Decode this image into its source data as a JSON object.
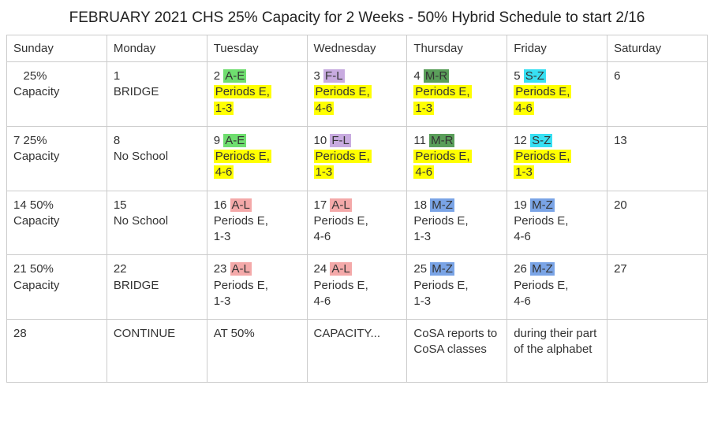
{
  "title": "FEBRUARY 2021 CHS 25% Capacity for 2 Weeks - 50% Hybrid Schedule to start 2/16",
  "colors": {
    "yellow": "#ffff00",
    "green": "#6fde6f",
    "darkgreen": "#5a9e5a",
    "lavender": "#c8abe0",
    "cyan": "#38e0f3",
    "pink": "#f4a9a9",
    "slate": "#7aa4e6",
    "border": "#cccccc",
    "text": "#333333"
  },
  "headers": [
    "Sunday",
    "Monday",
    "Tuesday",
    "Wednesday",
    "Thursday",
    "Friday",
    "Saturday"
  ],
  "weeks": [
    {
      "sun": {
        "pre": "   25% Capacity"
      },
      "mon": {
        "num": "1",
        "text": "BRIDGE"
      },
      "tue": {
        "num": "2",
        "group": "A-E",
        "group_bg": "#6fde6f",
        "periods": "Periods E, 1-3",
        "p_bg": "#ffff00"
      },
      "wed": {
        "num": "3",
        "group": "F-L",
        "group_bg": "#c8abe0",
        "periods": "Periods E, 4-6",
        "p_bg": "#ffff00"
      },
      "thu": {
        "num": "4",
        "group": "M-R",
        "group_bg": "#5a9e5a",
        "periods": "Periods E, 1-3",
        "p_bg": "#ffff00"
      },
      "fri": {
        "num": "5",
        "group": "S-Z",
        "group_bg": "#38e0f3",
        "periods": "Periods E, 4-6",
        "p_bg": "#ffff00"
      },
      "sat": {
        "num": "6"
      }
    },
    {
      "sun": {
        "num": "7",
        "text": "25% Capacity",
        "inline": true
      },
      "mon": {
        "num": "8",
        "text": "No School"
      },
      "tue": {
        "num": "9",
        "group": "A-E",
        "group_bg": "#6fde6f",
        "periods": "Periods E, 4-6",
        "p_bg": "#ffff00"
      },
      "wed": {
        "num": "10",
        "group": "F-L",
        "group_bg": "#c8abe0",
        "periods": "Periods E, 1-3",
        "p_bg": "#ffff00"
      },
      "thu": {
        "num": "11",
        "group": "M-R",
        "group_bg": "#5a9e5a",
        "periods": "Periods E, 4-6",
        "p_bg": "#ffff00"
      },
      "fri": {
        "num": "12",
        "group": "S-Z",
        "group_bg": "#38e0f3",
        "periods": "Periods E, 1-3",
        "p_bg": "#ffff00"
      },
      "sat": {
        "num": "13"
      }
    },
    {
      "sun": {
        "num": "14",
        "text": "50% Capacity",
        "inline": true
      },
      "mon": {
        "num": "15",
        "text": "No School"
      },
      "tue": {
        "num": "16",
        "group": "A-L",
        "group_bg": "#f4a9a9",
        "periods": "Periods E, 1-3"
      },
      "wed": {
        "num": "17",
        "group": "A-L",
        "group_bg": "#f4a9a9",
        "periods": "Periods E, 4-6"
      },
      "thu": {
        "num": "18",
        "group": "M-Z",
        "group_bg": "#7aa4e6",
        "periods": "Periods E, 1-3"
      },
      "fri": {
        "num": "19",
        "group": "M-Z",
        "group_bg": "#7aa4e6",
        "periods": "Periods E, 4-6"
      },
      "sat": {
        "num": "20"
      }
    },
    {
      "sun": {
        "num": "21",
        "text": "50% Capacity",
        "inline": true
      },
      "mon": {
        "num": "22",
        "text": "BRIDGE"
      },
      "tue": {
        "num": "23",
        "group": "A-L",
        "group_bg": "#f4a9a9",
        "periods": "Periods E, 1-3"
      },
      "wed": {
        "num": "24",
        "group": "A-L",
        "group_bg": "#f4a9a9",
        "periods": "Periods E, 4-6"
      },
      "thu": {
        "num": "25",
        "group": "M-Z",
        "group_bg": "#7aa4e6",
        "periods": "Periods E, 1-3"
      },
      "fri": {
        "num": "26",
        "group": "M-Z",
        "group_bg": "#7aa4e6",
        "periods": "Periods E, 4-6"
      },
      "sat": {
        "num": "27"
      }
    },
    {
      "sun": {
        "num": "28"
      },
      "mon": {
        "text": "CONTINUE"
      },
      "tue": {
        "text": "AT 50%"
      },
      "wed": {
        "text": "CAPACITY..."
      },
      "thu": {
        "text": "CoSA reports to CoSA classes"
      },
      "fri": {
        "text": "during their part of the alphabet"
      },
      "sat": {}
    }
  ]
}
